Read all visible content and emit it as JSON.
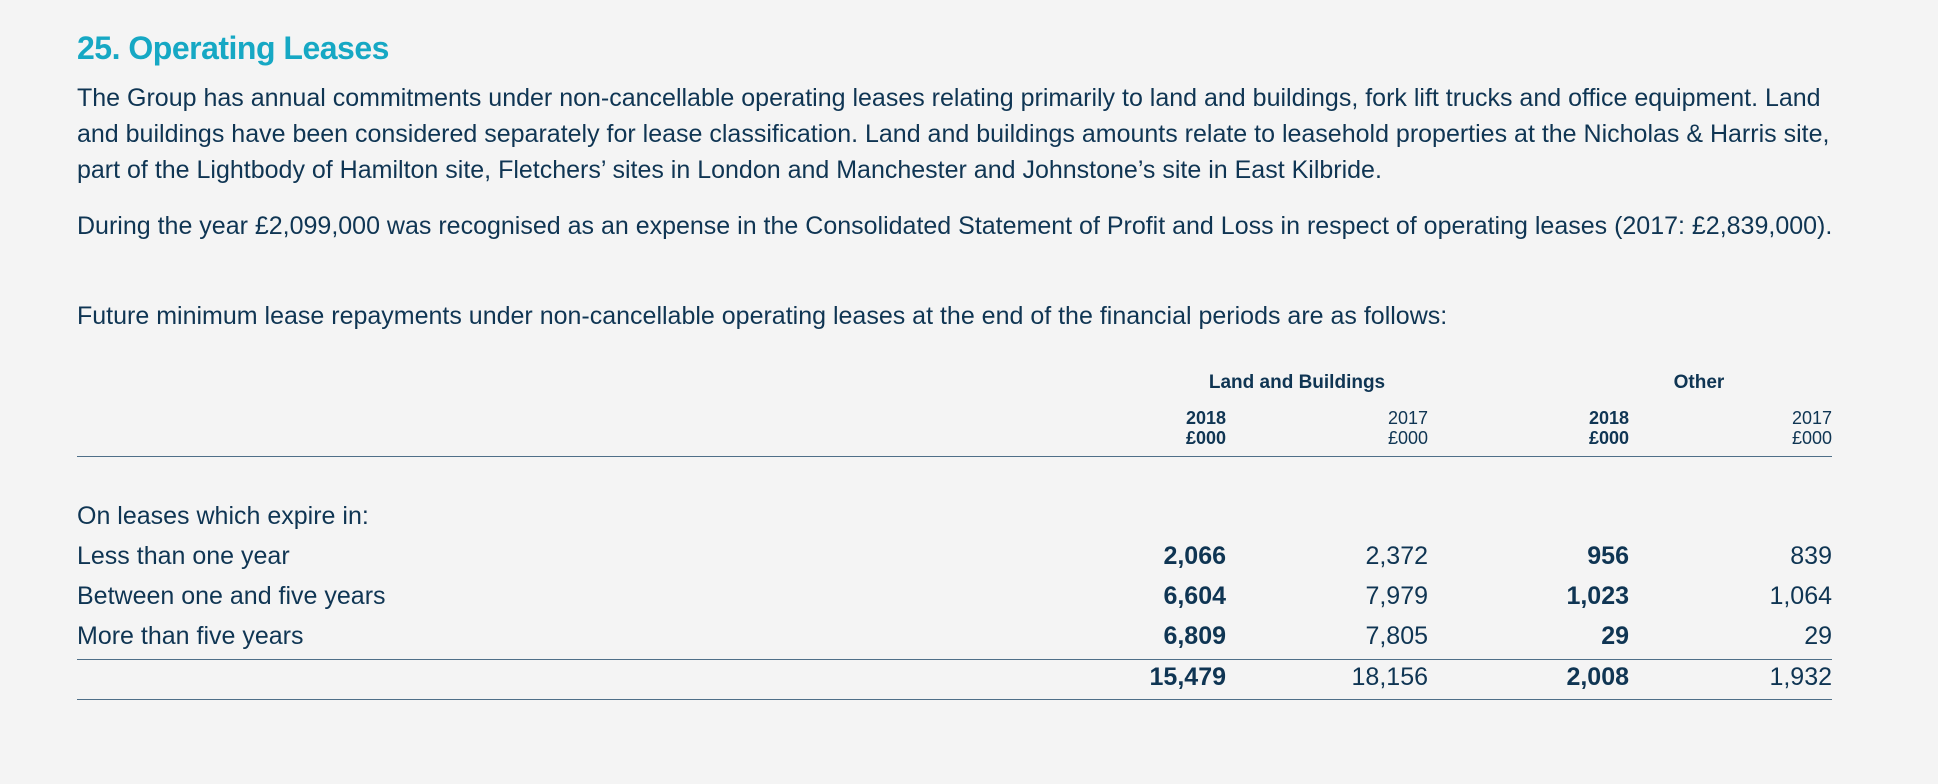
{
  "title": "25. Operating Leases",
  "paragraphs": [
    "The Group has annual commitments under non-cancellable operating leases relating primarily to land and buildings, fork lift trucks and office equipment. Land and buildings have been considered separately for lease classification. Land and buildings amounts relate to leasehold properties at the Nicholas & Harris site, part of the Lightbody of Hamilton site, Fletchers’ sites in London and Manchester and Johnstone’s site in East Kilbride.",
    "During the year £2,099,000 was recognised as an expense in the Consolidated Statement of Profit and Loss in respect of operating leases (2017: £2,839,000).",
    "Future minimum lease repayments under non-cancellable operating leases at the end of the financial periods are as follows:"
  ],
  "table": {
    "groups": [
      "Land and Buildings",
      "Other"
    ],
    "columns": [
      {
        "year": "2018",
        "unit": "£000",
        "bold": true
      },
      {
        "year": "2017",
        "unit": "£000",
        "bold": false
      },
      {
        "year": "2018",
        "unit": "£000",
        "bold": true
      },
      {
        "year": "2017",
        "unit": "£000",
        "bold": false
      }
    ],
    "section_label": "On leases which expire in:",
    "rows": [
      {
        "label": "Less than one year",
        "values": [
          "2,066",
          "2,372",
          "956",
          "839"
        ]
      },
      {
        "label": "Between one and five years",
        "values": [
          "6,604",
          "7,979",
          "1,023",
          "1,064"
        ]
      },
      {
        "label": "More than five years",
        "values": [
          "6,809",
          "7,805",
          "29",
          "29"
        ]
      }
    ],
    "totals": [
      "15,479",
      "18,156",
      "2,008",
      "1,932"
    ]
  }
}
